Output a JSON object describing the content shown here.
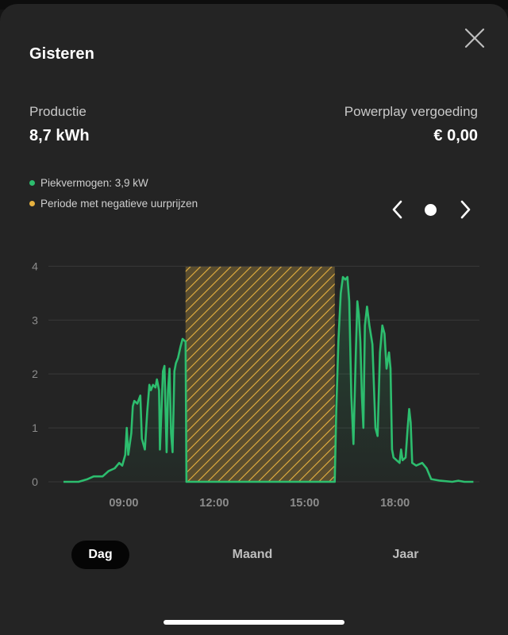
{
  "header": {
    "title": "Gisteren"
  },
  "stats": {
    "production_label": "Productie",
    "production_value": "8,7 kWh",
    "compensation_label": "Powerplay vergoeding",
    "compensation_value": "€ 0,00"
  },
  "legend": {
    "peak": {
      "text": "Piekvermogen: 3,9 kW",
      "color": "#2dbd6e"
    },
    "negative": {
      "text": "Periode met negatieve uurprijzen",
      "color": "#e6b13f"
    }
  },
  "icons": {
    "close": "close-icon",
    "prev": "chevron-left-icon",
    "next": "chevron-right-icon"
  },
  "tabs": [
    {
      "label": "Dag",
      "active": true
    },
    {
      "label": "Maand",
      "active": false
    },
    {
      "label": "Jaar",
      "active": false
    }
  ],
  "chart_data": {
    "type": "area",
    "xlabel": "",
    "ylabel": "",
    "unit": "kW",
    "ylim": [
      0,
      4.3
    ],
    "yticks": [
      "0",
      "1",
      "2",
      "3",
      "4"
    ],
    "xticks": [
      {
        "hour": 9,
        "label": "09:00"
      },
      {
        "hour": 12,
        "label": "12:00"
      },
      {
        "hour": 15,
        "label": "15:00"
      },
      {
        "hour": 18,
        "label": "18:00"
      }
    ],
    "xlim_hours": [
      6.5,
      20.8
    ],
    "grid": true,
    "line_color": "#2dbd6e",
    "highlight": {
      "label": "Periode met negatieve uurprijzen",
      "start_hour": 11.05,
      "end_hour": 16.0,
      "color": "#e6b13f"
    },
    "series": [
      {
        "values": [
          [
            7.0,
            0
          ],
          [
            7.5,
            0
          ],
          [
            7.8,
            0.05
          ],
          [
            8.0,
            0.1
          ],
          [
            8.3,
            0.1
          ],
          [
            8.5,
            0.2
          ],
          [
            8.7,
            0.25
          ],
          [
            8.85,
            0.35
          ],
          [
            8.95,
            0.3
          ],
          [
            9.05,
            0.5
          ],
          [
            9.1,
            1.0
          ],
          [
            9.15,
            0.5
          ],
          [
            9.25,
            0.9
          ],
          [
            9.3,
            1.4
          ],
          [
            9.35,
            1.5
          ],
          [
            9.45,
            1.45
          ],
          [
            9.55,
            1.6
          ],
          [
            9.6,
            0.8
          ],
          [
            9.7,
            0.6
          ],
          [
            9.78,
            1.3
          ],
          [
            9.85,
            1.8
          ],
          [
            9.9,
            1.7
          ],
          [
            9.97,
            1.8
          ],
          [
            10.05,
            1.75
          ],
          [
            10.1,
            1.9
          ],
          [
            10.17,
            1.7
          ],
          [
            10.2,
            0.6
          ],
          [
            10.3,
            2.05
          ],
          [
            10.35,
            2.15
          ],
          [
            10.42,
            0.55
          ],
          [
            10.47,
            1.7
          ],
          [
            10.52,
            2.1
          ],
          [
            10.57,
            0.9
          ],
          [
            10.62,
            0.55
          ],
          [
            10.68,
            2.05
          ],
          [
            10.73,
            2.2
          ],
          [
            10.8,
            2.3
          ],
          [
            10.88,
            2.5
          ],
          [
            10.95,
            2.65
          ],
          [
            11.05,
            2.6
          ],
          [
            11.08,
            0
          ],
          [
            16.0,
            0
          ],
          [
            16.05,
            1.3
          ],
          [
            16.12,
            2.6
          ],
          [
            16.2,
            3.5
          ],
          [
            16.27,
            3.8
          ],
          [
            16.35,
            3.75
          ],
          [
            16.42,
            3.8
          ],
          [
            16.48,
            3.35
          ],
          [
            16.55,
            1.6
          ],
          [
            16.62,
            0.7
          ],
          [
            16.7,
            2.4
          ],
          [
            16.75,
            3.35
          ],
          [
            16.8,
            3.1
          ],
          [
            16.85,
            2.6
          ],
          [
            16.9,
            1.6
          ],
          [
            16.95,
            1.0
          ],
          [
            17.0,
            2.9
          ],
          [
            17.07,
            3.25
          ],
          [
            17.15,
            2.9
          ],
          [
            17.25,
            2.55
          ],
          [
            17.35,
            1.0
          ],
          [
            17.42,
            0.85
          ],
          [
            17.5,
            2.4
          ],
          [
            17.58,
            2.9
          ],
          [
            17.65,
            2.75
          ],
          [
            17.72,
            2.1
          ],
          [
            17.8,
            2.4
          ],
          [
            17.85,
            2.1
          ],
          [
            17.9,
            0.6
          ],
          [
            17.95,
            0.45
          ],
          [
            18.05,
            0.4
          ],
          [
            18.15,
            0.35
          ],
          [
            18.2,
            0.6
          ],
          [
            18.25,
            0.4
          ],
          [
            18.35,
            0.45
          ],
          [
            18.42,
            1.0
          ],
          [
            18.47,
            1.35
          ],
          [
            18.52,
            1.1
          ],
          [
            18.57,
            0.35
          ],
          [
            18.7,
            0.3
          ],
          [
            18.9,
            0.35
          ],
          [
            19.05,
            0.25
          ],
          [
            19.2,
            0.05
          ],
          [
            19.5,
            0.02
          ],
          [
            19.9,
            0
          ],
          [
            20.1,
            0.02
          ],
          [
            20.3,
            0
          ],
          [
            20.6,
            0
          ]
        ]
      }
    ]
  }
}
